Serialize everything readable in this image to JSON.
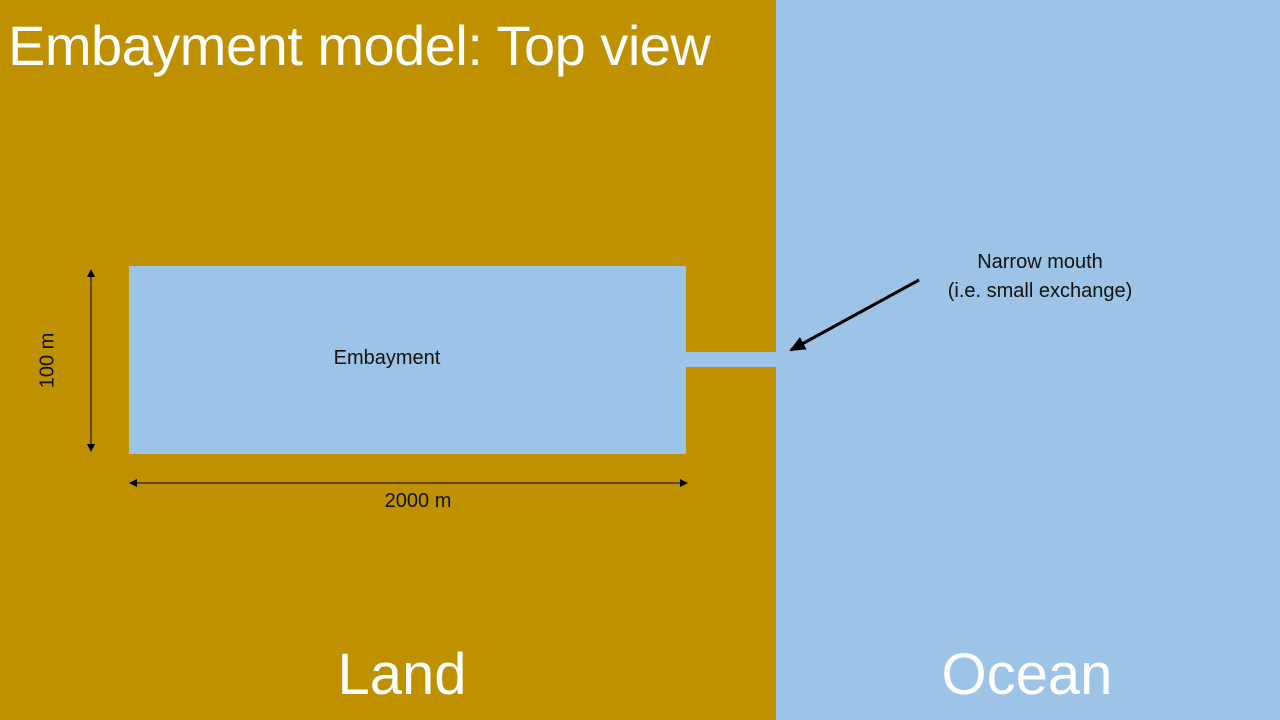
{
  "title": "Embayment model: Top view",
  "regions": {
    "land": "Land",
    "ocean": "Ocean"
  },
  "embayment": {
    "label": "Embayment",
    "width_label": "2000 m",
    "height_label": "100 m"
  },
  "mouth": {
    "line1": "Narrow mouth",
    "line2": "(i.e. small exchange)"
  },
  "colors": {
    "land": "#bf9000",
    "water": "#9dc3e6",
    "text_dark": "#111111",
    "text_light": "#ffffff"
  }
}
